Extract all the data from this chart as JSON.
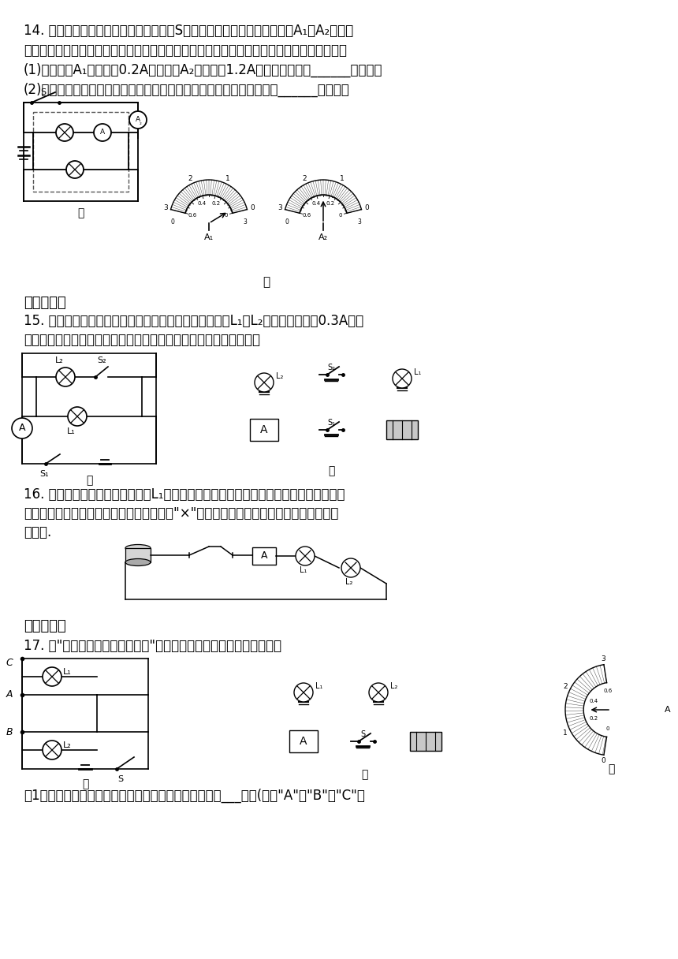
{
  "background_color": "#ffffff",
  "q14_line1": "14. 如图甲所示，电源电压不变，当开关S闭合时，两个完全一样的电流表A₁和A₂都有示",
  "q14_line2": "数，虚线框内并联的小灯泡数量未知，且每条支路上只有一个小灯泡，小灯泡的规格都一样。",
  "q14_sub1": "(1)若电流表A₁的示数为0.2A，电流表A₂的示数为1.2A，则虚线框内有______个灯泡。",
  "q14_sub2": "(2)若小明观察到两个电流表指针偏转如图乙所示，请你推测虚线框内有______个灯泡。",
  "section3": "三、作图题",
  "q15_line1": "15. 同学们用电流表测量并联电路中的电流，已知通过灯L₁和L₂的电流都不超过0.3A，请",
  "q15_line2": "你依据图甲所示电路图连接图乙所示实物电路图（导线不能交叉）。",
  "q16_line1": "16. 小李同学测量某电路中小灯泡L₁的电流时，所连的实物图如图所示，请检查如图的连",
  "q16_line2": "线是否有错，若有错，请在有错的连线上打\"×\"，并在图中画出正确的连线，注意连线不",
  "q16_line3": "要交叉.",
  "section4": "四、实验题",
  "q17_line1": "17. 在\"探究并联电路的电流规律\"的实验中，如图甲是实验的电路图。",
  "q17_sub1": "（1）若要测量干路中的电流，则电流表应接在图甲中的___点；(选填\"A\"、\"B\"或\"C\"）"
}
